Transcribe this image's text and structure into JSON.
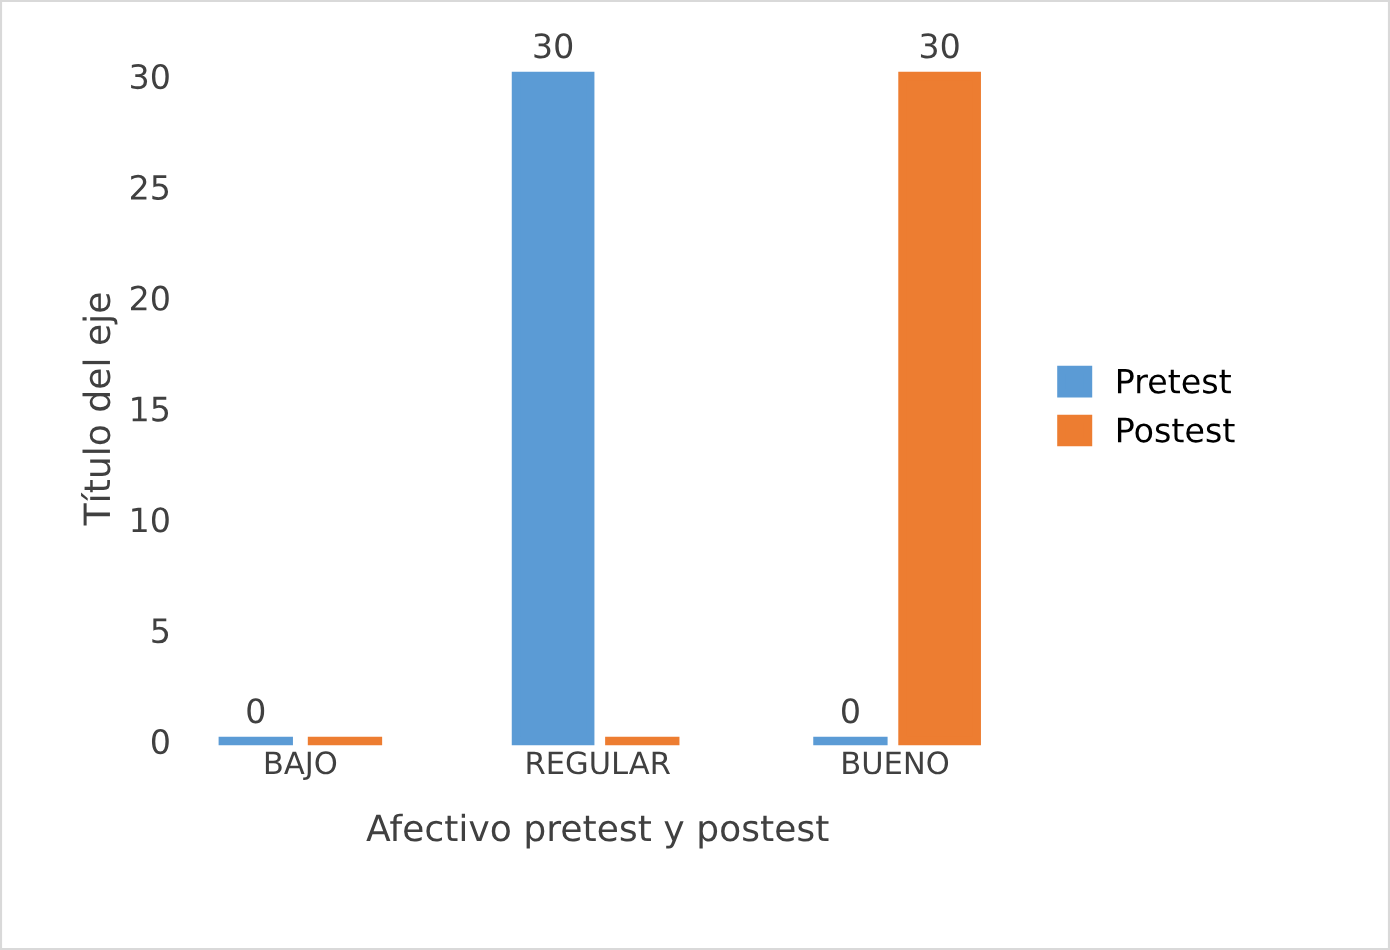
{
  "chart_data": {
    "type": "bar",
    "xlabel": "Afectivo pretest y postest",
    "ylabel": "Título del eje",
    "categories": [
      "BAJO",
      "REGULAR",
      "BUENO"
    ],
    "series": [
      {
        "name": "Pretest",
        "color": "#5b9bd5",
        "values": [
          0,
          30,
          0
        ],
        "value_labels": [
          "0",
          "30",
          "0"
        ]
      },
      {
        "name": "Postest",
        "color": "#ed7d31",
        "values": [
          0,
          0,
          30
        ],
        "value_labels": [
          null,
          null,
          "30"
        ]
      }
    ],
    "ylim": [
      0,
      30
    ],
    "yticks": [
      0,
      5,
      10,
      15,
      20,
      25,
      30
    ],
    "grid": false,
    "legend": "right"
  }
}
